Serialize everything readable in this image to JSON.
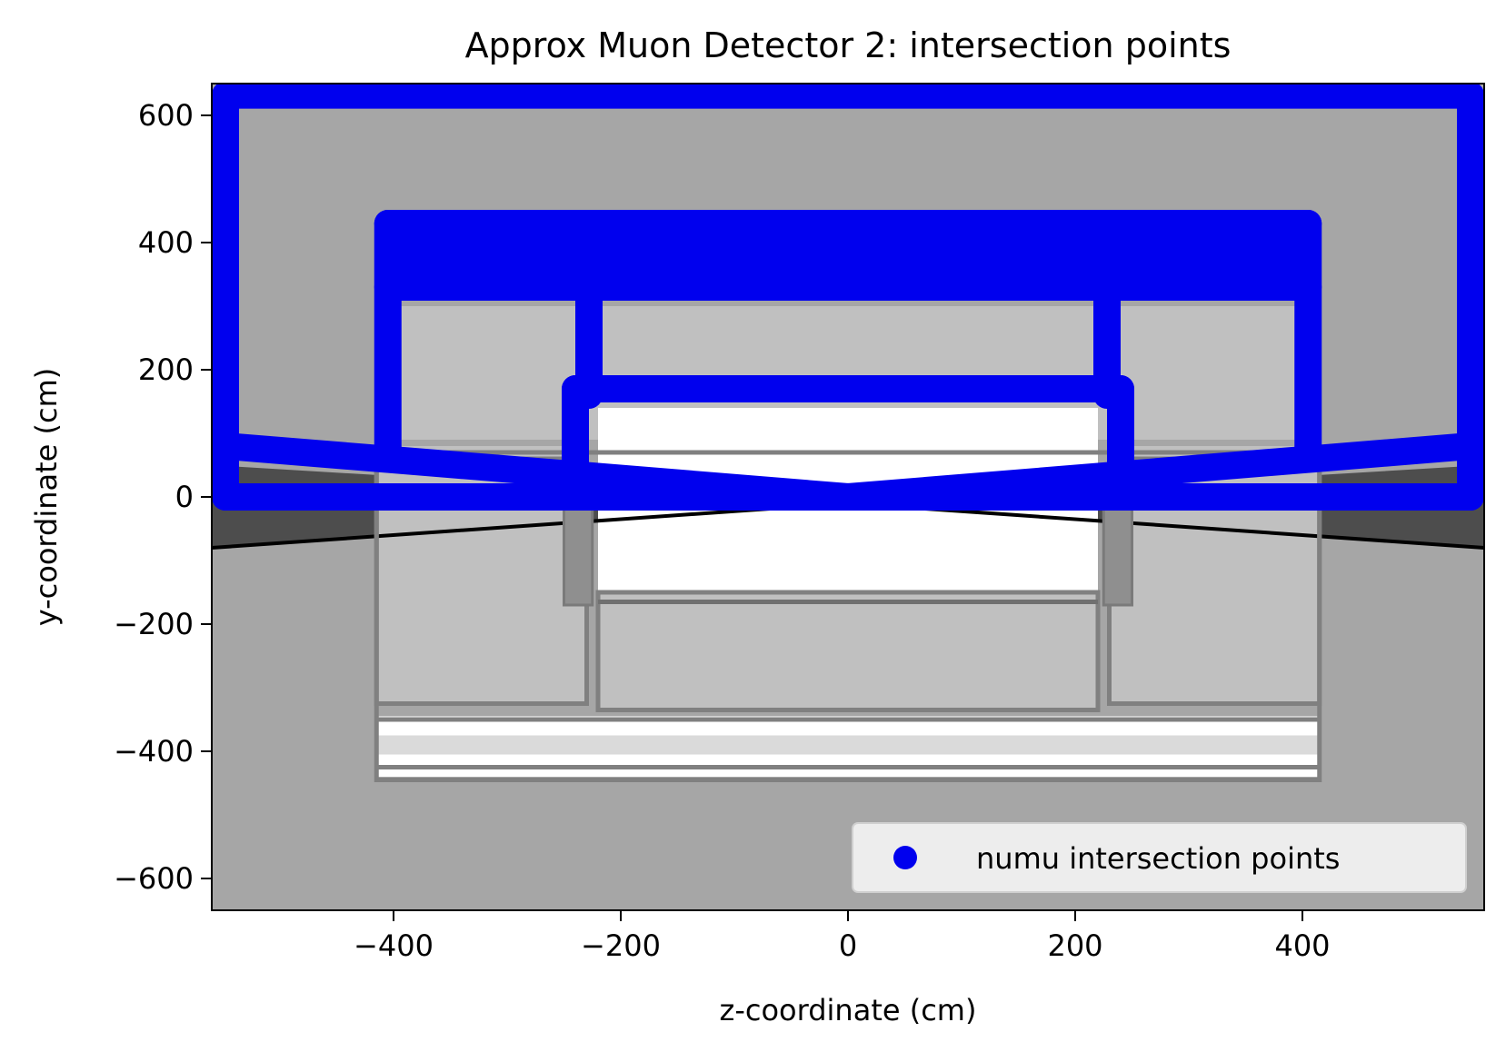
{
  "chart_data": {
    "type": "scatter",
    "title": "Approx Muon Detector 2: intersection points",
    "xlabel": "z-coordinate (cm)",
    "ylabel": "y-coordinate (cm)",
    "xlim": [
      -560,
      560
    ],
    "ylim": [
      -650,
      650
    ],
    "xticks": [
      -400,
      -200,
      0,
      200,
      400
    ],
    "yticks": [
      -600,
      -400,
      -200,
      0,
      200,
      400,
      600
    ],
    "xtick_labels": [
      "−400",
      "−200",
      "0",
      "200",
      "400"
    ],
    "ytick_labels": [
      "−600",
      "−400",
      "−200",
      "0",
      "200",
      "400",
      "600"
    ],
    "grid": false,
    "legend": {
      "position": "lower-right",
      "entries": [
        "numu intersection points"
      ]
    },
    "colors": {
      "points": "#0000ee",
      "background": "#a6a6a6",
      "cavern": "#4d4d4d",
      "hall": "#c0c0c0",
      "frame": "#808080",
      "void": "#ffffff"
    },
    "detector_outlines": [
      {
        "name": "outer-hall",
        "z0": -415,
        "z1": 415,
        "y0": -445,
        "y1": 70
      },
      {
        "name": "hall-left",
        "z0": -415,
        "z1": -230,
        "y0": -325,
        "y1": 60
      },
      {
        "name": "hall-center",
        "z0": -220,
        "z1": 220,
        "y0": -335,
        "y1": -150
      },
      {
        "name": "hall-right",
        "z0": 230,
        "z1": 415,
        "y0": -325,
        "y1": 60
      }
    ],
    "series": [
      {
        "name": "numu intersection points",
        "segments": [
          {
            "z0": -548,
            "y0": 632,
            "z1": 548,
            "y1": 632
          },
          {
            "z0": -548,
            "y0": 632,
            "z1": -548,
            "y1": 0
          },
          {
            "z0": 548,
            "y0": 632,
            "z1": 548,
            "y1": 0
          },
          {
            "z0": -548,
            "y0": 0,
            "z1": 548,
            "y1": 0
          },
          {
            "z0": -548,
            "y0": 80,
            "z1": 0,
            "y1": 0
          },
          {
            "z0": 0,
            "y0": 0,
            "z1": 548,
            "y1": 80
          },
          {
            "z0": -405,
            "y0": 430,
            "z1": 405,
            "y1": 430
          },
          {
            "z0": -405,
            "y0": 330,
            "z1": 405,
            "y1": 330
          },
          {
            "z0": -405,
            "y0": 430,
            "z1": -405,
            "y1": 60
          },
          {
            "z0": 405,
            "y0": 430,
            "z1": 405,
            "y1": 60
          },
          {
            "z0": -228,
            "y0": 330,
            "z1": -228,
            "y1": 160
          },
          {
            "z0": 228,
            "y0": 330,
            "z1": 228,
            "y1": 160
          },
          {
            "z0": -240,
            "y0": 170,
            "z1": 240,
            "y1": 170
          },
          {
            "z0": -240,
            "y0": 170,
            "z1": -240,
            "y1": 0
          },
          {
            "z0": 240,
            "y0": 170,
            "z1": 240,
            "y1": 0
          }
        ]
      }
    ]
  }
}
